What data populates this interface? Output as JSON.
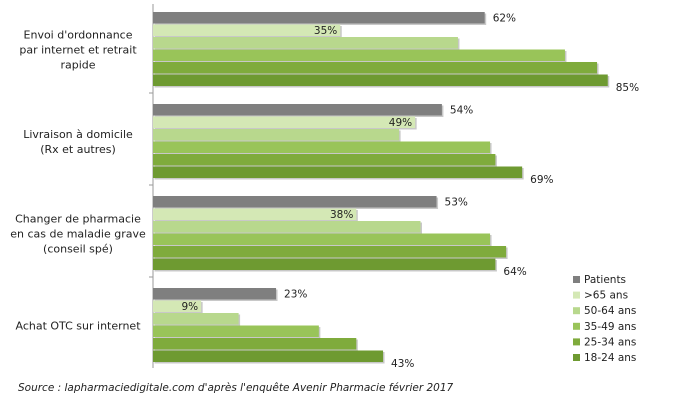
{
  "chart_data": {
    "type": "bar",
    "orientation": "horizontal",
    "categories": [
      "Envoi d'ordonnance par internet et retrait rapide",
      "Livraison à domicile (Rx et autres)",
      "Changer de pharmacie en cas de maladie grave (conseil spé)",
      "Achat OTC sur internet"
    ],
    "category_lines": [
      [
        "Envoi d'ordonnance",
        "par internet et retrait",
        "rapide"
      ],
      [
        "Livraison à domicile",
        "(Rx et autres)"
      ],
      [
        "Changer de pharmacie",
        "en cas de maladie grave",
        "(conseil spé)"
      ],
      [
        "Achat OTC sur internet"
      ]
    ],
    "series": [
      {
        "name": "Patients",
        "color": "#7f7f7f",
        "values": [
          62,
          54,
          53,
          23
        ]
      },
      {
        "name": ">65 ans",
        "color": "#d4e8b5",
        "values": [
          35,
          49,
          38,
          9
        ]
      },
      {
        "name": "50-64 ans",
        "color": "#b8d88d",
        "values": [
          57,
          46,
          50,
          16
        ]
      },
      {
        "name": "35-49 ans",
        "color": "#99c459",
        "values": [
          77,
          63,
          63,
          31
        ]
      },
      {
        "name": "25-34 ans",
        "color": "#7fab3c",
        "values": [
          83,
          64,
          66,
          38
        ]
      },
      {
        "name": "18-24 ans",
        "color": "#6e9a31",
        "values": [
          85,
          69,
          64,
          43
        ]
      }
    ],
    "labeled_series": [
      "Patients",
      ">65 ans",
      "18-24 ans"
    ],
    "value_suffix": "%",
    "xlim": [
      0,
      100
    ],
    "grid": false,
    "legend_position": "bottom-right"
  },
  "source": "Source : lapharmaciedigitale.com d'après l'enquête Avenir Pharmacie février 2017"
}
